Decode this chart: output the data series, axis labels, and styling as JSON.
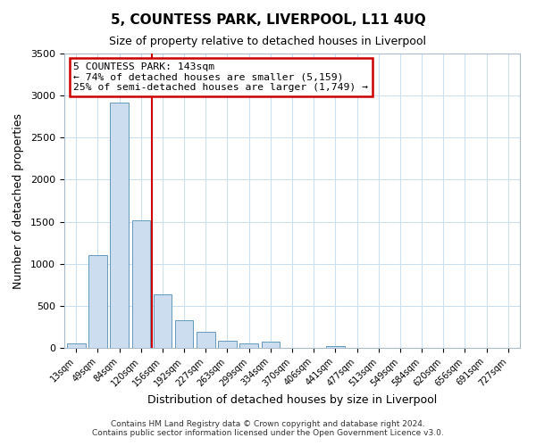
{
  "title": "5, COUNTESS PARK, LIVERPOOL, L11 4UQ",
  "subtitle": "Size of property relative to detached houses in Liverpool",
  "xlabel": "Distribution of detached houses by size in Liverpool",
  "ylabel": "Number of detached properties",
  "bar_labels": [
    "13sqm",
    "49sqm",
    "84sqm",
    "120sqm",
    "156sqm",
    "192sqm",
    "227sqm",
    "263sqm",
    "299sqm",
    "334sqm",
    "370sqm",
    "406sqm",
    "441sqm",
    "477sqm",
    "513sqm",
    "549sqm",
    "584sqm",
    "620sqm",
    "656sqm",
    "691sqm",
    "727sqm"
  ],
  "bar_values": [
    50,
    1100,
    2920,
    1520,
    640,
    330,
    195,
    90,
    50,
    70,
    0,
    0,
    20,
    0,
    0,
    0,
    0,
    0,
    0,
    0,
    0
  ],
  "bar_color": "#ccddf0",
  "bar_edge_color": "#6699bb",
  "background_color": "#ffffff",
  "grid_color": "#cce0f0",
  "vline_index": 3.5,
  "vline_color": "#cc0000",
  "annotation_box_text": "5 COUNTESS PARK: 143sqm\n← 74% of detached houses are smaller (5,159)\n25% of semi-detached houses are larger (1,749) →",
  "annotation_box_color": "#cc0000",
  "ylim": [
    0,
    3500
  ],
  "yticks": [
    0,
    500,
    1000,
    1500,
    2000,
    2500,
    3000,
    3500
  ],
  "footer_line1": "Contains HM Land Registry data © Crown copyright and database right 2024.",
  "footer_line2": "Contains public sector information licensed under the Open Government Licence v3.0."
}
